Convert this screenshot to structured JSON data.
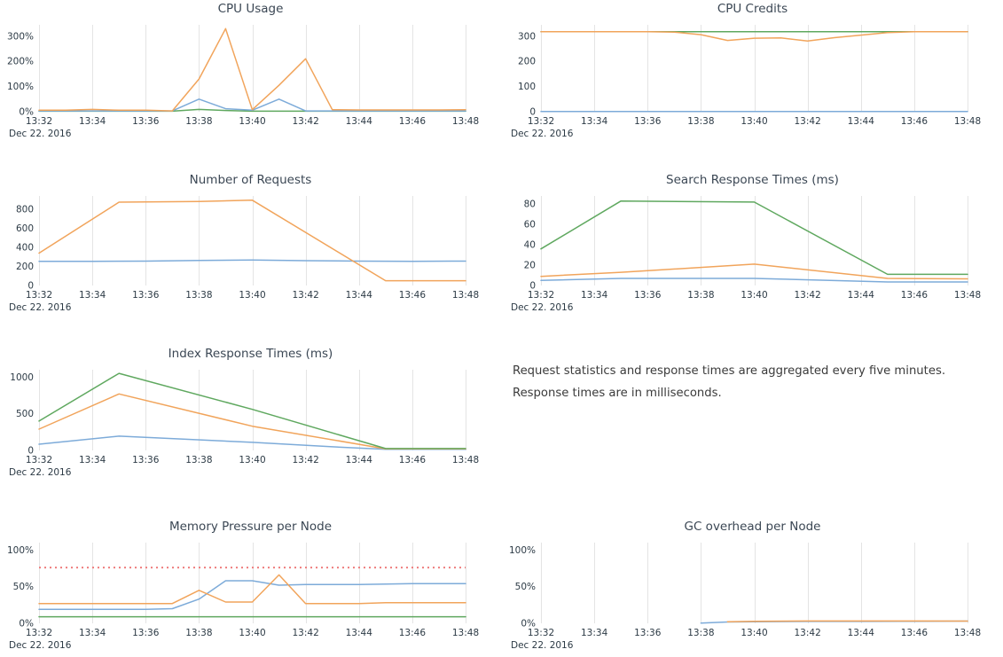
{
  "note": {
    "text": "Request statistics and response times are aggregated every five minutes. Response times are in milliseconds."
  },
  "x_axis": {
    "tick_labels": [
      "13:32",
      "13:34",
      "13:36",
      "13:38",
      "13:40",
      "13:42",
      "13:44",
      "13:46",
      "13:48"
    ],
    "range_minutes": [
      32,
      48
    ],
    "date_label": "Dec 22. 2016"
  },
  "palette": {
    "blue": "#7dabd9",
    "orange": "#f1a45b",
    "green": "#5fa85f",
    "red": "#ee7d7d",
    "gridline": "#e4e4e4"
  },
  "chart_data": [
    {
      "type": "line",
      "title": "CPU Usage",
      "ylim": [
        0,
        345
      ],
      "y_ticks": [
        {
          "value": 0,
          "label": "0%"
        },
        {
          "value": 100,
          "label": "100%"
        },
        {
          "value": 200,
          "label": "200%"
        },
        {
          "value": 300,
          "label": "300%"
        }
      ],
      "series": [
        {
          "name": "green",
          "color_key": "green",
          "points": [
            [
              32,
              2
            ],
            [
              33,
              2
            ],
            [
              34,
              2
            ],
            [
              35,
              2
            ],
            [
              36,
              2
            ],
            [
              37,
              2
            ],
            [
              38,
              9
            ],
            [
              39,
              5
            ],
            [
              40,
              2
            ],
            [
              41,
              2
            ],
            [
              42,
              2
            ],
            [
              43,
              2
            ],
            [
              44,
              2
            ],
            [
              45,
              2
            ],
            [
              46,
              2
            ],
            [
              47,
              2
            ],
            [
              48,
              2
            ]
          ]
        },
        {
          "name": "blue",
          "color_key": "blue",
          "points": [
            [
              32,
              3
            ],
            [
              33,
              3
            ],
            [
              34,
              3
            ],
            [
              35,
              3
            ],
            [
              36,
              3
            ],
            [
              37,
              3
            ],
            [
              38,
              50
            ],
            [
              39,
              12
            ],
            [
              40,
              6
            ],
            [
              41,
              50
            ],
            [
              42,
              3
            ],
            [
              43,
              3
            ],
            [
              44,
              3
            ],
            [
              45,
              3
            ],
            [
              46,
              3
            ],
            [
              47,
              3
            ],
            [
              48,
              3
            ]
          ]
        },
        {
          "name": "orange",
          "color_key": "orange",
          "points": [
            [
              32,
              6
            ],
            [
              33,
              6
            ],
            [
              34,
              9
            ],
            [
              35,
              6
            ],
            [
              36,
              6
            ],
            [
              37,
              3
            ],
            [
              38,
              130
            ],
            [
              39,
              330
            ],
            [
              40,
              8
            ],
            [
              41,
              105
            ],
            [
              42,
              210
            ],
            [
              43,
              8
            ],
            [
              44,
              7
            ],
            [
              45,
              7
            ],
            [
              46,
              7
            ],
            [
              47,
              7
            ],
            [
              48,
              8
            ]
          ]
        }
      ]
    },
    {
      "type": "line",
      "title": "CPU Credits",
      "ylim": [
        0,
        345
      ],
      "y_ticks": [
        {
          "value": 0,
          "label": "0"
        },
        {
          "value": 100,
          "label": "100"
        },
        {
          "value": 200,
          "label": "200"
        },
        {
          "value": 300,
          "label": "300"
        }
      ],
      "series": [
        {
          "name": "blue",
          "color_key": "blue",
          "points": [
            [
              32,
              1
            ],
            [
              48,
              1
            ]
          ]
        },
        {
          "name": "green",
          "color_key": "green",
          "points": [
            [
              32,
              318
            ],
            [
              48,
              318
            ]
          ]
        },
        {
          "name": "orange",
          "color_key": "orange",
          "points": [
            [
              32,
              318
            ],
            [
              36,
              318
            ],
            [
              37,
              316
            ],
            [
              38,
              306
            ],
            [
              39,
              283
            ],
            [
              40,
              292
            ],
            [
              41,
              293
            ],
            [
              42,
              281
            ],
            [
              43,
              294
            ],
            [
              44,
              304
            ],
            [
              45,
              314
            ],
            [
              46,
              318
            ],
            [
              47,
              318
            ],
            [
              48,
              318
            ]
          ]
        }
      ]
    },
    {
      "type": "line",
      "title": "Number of Requests",
      "ylim": [
        0,
        940
      ],
      "y_ticks": [
        {
          "value": 0,
          "label": "0"
        },
        {
          "value": 200,
          "label": "200"
        },
        {
          "value": 400,
          "label": "400"
        },
        {
          "value": 600,
          "label": "600"
        },
        {
          "value": 800,
          "label": "800"
        }
      ],
      "series": [
        {
          "name": "blue",
          "color_key": "blue",
          "points": [
            [
              32,
              253
            ],
            [
              34,
              254
            ],
            [
              36,
              256
            ],
            [
              38,
              263
            ],
            [
              40,
              268
            ],
            [
              42,
              261
            ],
            [
              44,
              256
            ],
            [
              46,
              254
            ],
            [
              48,
              256
            ]
          ]
        },
        {
          "name": "orange",
          "color_key": "orange",
          "points": [
            [
              32,
              340
            ],
            [
              35,
              875
            ],
            [
              38,
              882
            ],
            [
              40,
              895
            ],
            [
              45,
              50
            ],
            [
              48,
              50
            ]
          ]
        }
      ]
    },
    {
      "type": "line",
      "title": "Search Response Times (ms)",
      "ylim": [
        0,
        88
      ],
      "y_ticks": [
        {
          "value": 0,
          "label": "0"
        },
        {
          "value": 20,
          "label": "20"
        },
        {
          "value": 40,
          "label": "40"
        },
        {
          "value": 60,
          "label": "60"
        },
        {
          "value": 80,
          "label": "80"
        }
      ],
      "series": [
        {
          "name": "blue",
          "color_key": "blue",
          "points": [
            [
              32,
              5
            ],
            [
              35,
              7
            ],
            [
              40,
              7
            ],
            [
              45,
              3.5
            ],
            [
              48,
              3.5
            ]
          ]
        },
        {
          "name": "orange",
          "color_key": "orange",
          "points": [
            [
              32,
              9
            ],
            [
              35,
              13
            ],
            [
              40,
              21
            ],
            [
              45,
              7
            ],
            [
              48,
              6.5
            ]
          ]
        },
        {
          "name": "green",
          "color_key": "green",
          "points": [
            [
              32,
              36
            ],
            [
              35,
              83
            ],
            [
              40,
              82
            ],
            [
              45,
              11
            ],
            [
              48,
              11
            ]
          ]
        }
      ]
    },
    {
      "type": "line",
      "title": "Index Response Times (ms)",
      "ylim": [
        0,
        1100
      ],
      "y_ticks": [
        {
          "value": 0,
          "label": "0"
        },
        {
          "value": 500,
          "label": "500"
        },
        {
          "value": 1000,
          "label": "1000"
        }
      ],
      "series": [
        {
          "name": "blue",
          "color_key": "blue",
          "points": [
            [
              32,
              85
            ],
            [
              35,
              195
            ],
            [
              40,
              110
            ],
            [
              43,
              50
            ],
            [
              45,
              15
            ],
            [
              48,
              15
            ]
          ]
        },
        {
          "name": "orange",
          "color_key": "orange",
          "points": [
            [
              32,
              290
            ],
            [
              35,
              770
            ],
            [
              40,
              330
            ],
            [
              45,
              22
            ],
            [
              48,
              22
            ]
          ]
        },
        {
          "name": "green",
          "color_key": "green",
          "points": [
            [
              32,
              400
            ],
            [
              35,
              1050
            ],
            [
              40,
              560
            ],
            [
              45,
              25
            ],
            [
              48,
              25
            ]
          ]
        }
      ]
    },
    {
      "type": "line",
      "title": "Memory Pressure per Node",
      "ylim": [
        0,
        110
      ],
      "y_ticks": [
        {
          "value": 0,
          "label": "0%"
        },
        {
          "value": 50,
          "label": "50%"
        },
        {
          "value": 100,
          "label": "100%"
        }
      ],
      "threshold": {
        "value": 76,
        "color_key": "red",
        "style": "dotted"
      },
      "series": [
        {
          "name": "green",
          "color_key": "green",
          "points": [
            [
              32,
              9
            ],
            [
              48,
              9
            ]
          ]
        },
        {
          "name": "blue",
          "color_key": "blue",
          "points": [
            [
              32,
              19
            ],
            [
              36,
              19
            ],
            [
              37,
              20
            ],
            [
              38,
              33
            ],
            [
              39,
              58
            ],
            [
              40,
              58
            ],
            [
              41,
              52
            ],
            [
              42,
              53
            ],
            [
              44,
              53
            ],
            [
              46,
              54
            ],
            [
              48,
              54
            ]
          ]
        },
        {
          "name": "orange",
          "color_key": "orange",
          "points": [
            [
              32,
              27
            ],
            [
              37,
              27
            ],
            [
              38,
              45
            ],
            [
              39,
              29
            ],
            [
              40,
              29
            ],
            [
              41,
              66
            ],
            [
              42,
              27
            ],
            [
              44,
              27
            ],
            [
              45,
              28
            ],
            [
              48,
              28
            ]
          ]
        }
      ]
    },
    {
      "type": "line",
      "title": "GC overhead per Node",
      "ylim": [
        0,
        110
      ],
      "y_ticks": [
        {
          "value": 0,
          "label": "0%"
        },
        {
          "value": 50,
          "label": "50%"
        },
        {
          "value": 100,
          "label": "100%"
        }
      ],
      "series": [
        {
          "name": "blue",
          "color_key": "blue",
          "points": [
            [
              38,
              0.3
            ],
            [
              39,
              1.8
            ],
            [
              40,
              2.2
            ],
            [
              42,
              2.5
            ],
            [
              44,
              2.5
            ],
            [
              46,
              2.8
            ],
            [
              48,
              3
            ]
          ]
        },
        {
          "name": "orange",
          "color_key": "orange",
          "points": [
            [
              39,
              2.2
            ],
            [
              40,
              2.8
            ],
            [
              42,
              3.2
            ],
            [
              44,
              3.2
            ],
            [
              46,
              3.2
            ],
            [
              48,
              3
            ]
          ]
        }
      ]
    }
  ]
}
